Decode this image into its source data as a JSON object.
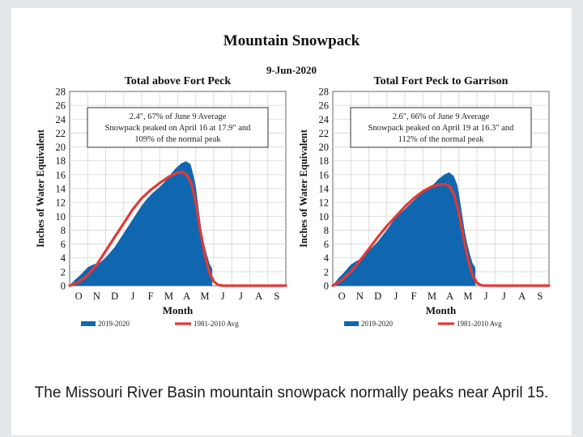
{
  "slide": {
    "title": "Mountain Snowpack",
    "date": "9-Jun-2020",
    "caption": "The Missouri River Basin mountain snowpack normally peaks near April 15."
  },
  "colors": {
    "current": "#1166b0",
    "normal": "#e23a36",
    "frame": "#666666"
  },
  "chart_data": [
    {
      "type": "area",
      "title": "Total above Fort Peck",
      "annotation": [
        "2.4\", 67% of June 9 Average",
        "Snowpack peaked on April 16 at 17.9\" and",
        "109% of the normal peak"
      ],
      "xlabel": "Month",
      "ylabel": "Inches of Water Equivalent",
      "ylim": [
        0,
        28
      ],
      "yticks": [
        "0",
        "2",
        "4",
        "6",
        "8",
        "10",
        "12",
        "14",
        "16",
        "18",
        "20",
        "22",
        "24",
        "26",
        "28"
      ],
      "months": [
        "O",
        "N",
        "D",
        "J",
        "F",
        "M",
        "A",
        "M",
        "J",
        "J",
        "A",
        "S"
      ],
      "legend": [
        "2019-2020",
        "1981-2010 Avg"
      ],
      "series": [
        {
          "name": "2019-2020",
          "x": [
            0,
            0.3,
            0.6,
            1.0,
            1.3,
            1.7,
            2.0,
            2.5,
            3.0,
            3.5,
            4.0,
            4.3,
            4.6,
            5.0,
            5.3,
            5.6,
            5.9,
            6.2,
            6.45,
            6.7,
            6.9,
            7.0,
            7.15,
            7.3,
            7.45,
            7.6,
            7.75,
            7.9,
            7.9
          ],
          "values": [
            0,
            0.8,
            1.5,
            2.6,
            3.0,
            3.3,
            4.0,
            5.5,
            7.5,
            9.5,
            11.5,
            12.5,
            13.3,
            14.2,
            15.0,
            16.0,
            16.9,
            17.6,
            17.9,
            17.5,
            15.5,
            14.0,
            11.0,
            8.0,
            6.0,
            4.5,
            3.2,
            2.4,
            0
          ]
        },
        {
          "name": "1981-2010 Avg",
          "x": [
            0,
            0.5,
            1.0,
            1.5,
            2.0,
            2.5,
            3.0,
            3.5,
            4.0,
            4.5,
            5.0,
            5.5,
            6.0,
            6.25,
            6.5,
            6.75,
            7.0,
            7.25,
            7.5,
            7.75,
            8.0,
            8.25,
            8.5,
            9.0,
            10.0,
            11.0,
            12.0
          ],
          "values": [
            0,
            0.5,
            1.5,
            3.0,
            5.0,
            7.0,
            9.0,
            11.0,
            12.6,
            13.8,
            14.8,
            15.7,
            16.3,
            16.4,
            16.0,
            14.8,
            12.0,
            8.0,
            4.5,
            2.0,
            0.6,
            0.1,
            0,
            0,
            0,
            0,
            0
          ]
        }
      ]
    },
    {
      "type": "area",
      "title": "Total Fort Peck to Garrison",
      "annotation": [
        "2.6\", 66% of June 9 Average",
        "Snowpack peaked on April 19 at 16.3\" and",
        "112% of the normal peak"
      ],
      "xlabel": "Month",
      "ylabel": "Inches of Water Equivalent",
      "ylim": [
        0,
        28
      ],
      "yticks": [
        "0",
        "2",
        "4",
        "6",
        "8",
        "10",
        "12",
        "14",
        "16",
        "18",
        "20",
        "22",
        "24",
        "26",
        "28"
      ],
      "months": [
        "O",
        "N",
        "D",
        "J",
        "F",
        "M",
        "A",
        "M",
        "J",
        "J",
        "A",
        "S"
      ],
      "legend": [
        "2019-2020",
        "1981-2010 Avg"
      ],
      "series": [
        {
          "name": "2019-2020",
          "x": [
            0,
            0.3,
            0.6,
            1.0,
            1.3,
            1.7,
            2.0,
            2.5,
            3.0,
            3.5,
            4.0,
            4.4,
            4.8,
            5.2,
            5.6,
            5.9,
            6.2,
            6.45,
            6.7,
            6.9,
            7.0,
            7.15,
            7.3,
            7.45,
            7.6,
            7.75,
            7.9,
            7.9
          ],
          "values": [
            0,
            1.0,
            1.8,
            3.0,
            3.5,
            4.0,
            5.0,
            6.3,
            8.0,
            9.8,
            11.0,
            12.0,
            13.0,
            13.8,
            14.6,
            15.4,
            16.0,
            16.3,
            15.8,
            14.5,
            13.0,
            10.5,
            8.0,
            6.0,
            4.5,
            3.2,
            2.6,
            0
          ]
        },
        {
          "name": "1981-2010 Avg",
          "x": [
            0,
            0.5,
            1.0,
            1.5,
            2.0,
            2.5,
            3.0,
            3.5,
            4.0,
            4.5,
            5.0,
            5.5,
            6.0,
            6.25,
            6.5,
            6.75,
            7.0,
            7.25,
            7.5,
            7.75,
            8.0,
            8.25,
            8.5,
            9.0,
            10.0,
            11.0,
            12.0
          ],
          "values": [
            0,
            0.8,
            2.0,
            3.6,
            5.3,
            7.0,
            8.6,
            10.0,
            11.4,
            12.6,
            13.6,
            14.3,
            14.6,
            14.6,
            14.3,
            13.0,
            10.5,
            7.0,
            3.8,
            1.6,
            0.4,
            0.05,
            0,
            0,
            0,
            0,
            0
          ]
        }
      ]
    }
  ]
}
